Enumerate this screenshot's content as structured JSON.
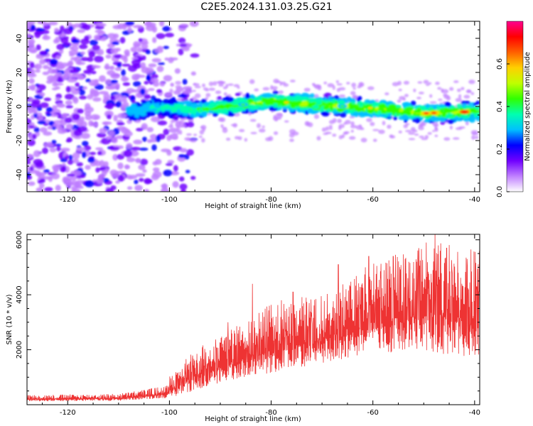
{
  "title": "C2E5.2024.131.03.25.G21",
  "charts": [
    {
      "type": "heatmap",
      "xlabel": "Height of straight line (km)",
      "ylabel": "Frequency (Hz)",
      "xlim": [
        -128,
        -39
      ],
      "ylim": [
        -50,
        50
      ],
      "xticks": [
        -120,
        -100,
        -80,
        -60,
        -40
      ],
      "yticks": [
        -40,
        -20,
        0,
        20,
        40
      ],
      "colorbar": {
        "label": "Normalized spectral amplitude",
        "range": [
          0,
          0.8
        ],
        "ticks": [
          "0.0",
          "0.2",
          "0.4",
          "0.6"
        ],
        "colors": [
          "#ffffff",
          "#c080ff",
          "#7000ff",
          "#0000ff",
          "#00c0ff",
          "#00ffb0",
          "#30ff00",
          "#c0ff00",
          "#ffd000",
          "#ff6000",
          "#ff0000",
          "#ff0090"
        ]
      },
      "signal_band": {
        "x_range": [
          -108,
          -39
        ],
        "center_hz": [
          {
            "x": -105,
            "y": 0
          },
          {
            "x": -95,
            "y": -2
          },
          {
            "x": -80,
            "y": 3
          },
          {
            "x": -70,
            "y": 1
          },
          {
            "x": -60,
            "y": -1
          },
          {
            "x": -50,
            "y": -4
          },
          {
            "x": -40,
            "y": -3
          }
        ],
        "halfwidth_hz": 7
      },
      "noise_region": {
        "x_range": [
          -128,
          -95
        ],
        "y_range": [
          -50,
          50
        ]
      }
    },
    {
      "type": "line",
      "xlabel": "Height of straight line (km)",
      "ylabel": "SNR (10 * v/v)",
      "xlim": [
        -128,
        -39
      ],
      "ylim": [
        0,
        6200
      ],
      "xticks": [
        -120,
        -100,
        -80,
        -60,
        -40
      ],
      "yticks": [
        2000,
        4000,
        6000
      ],
      "series": [
        {
          "color": "#ee3333",
          "envelope": [
            {
              "x": -128,
              "base": 120,
              "peak": 400
            },
            {
              "x": -110,
              "base": 140,
              "peak": 450
            },
            {
              "x": -100,
              "base": 250,
              "peak": 800
            },
            {
              "x": -95,
              "base": 500,
              "peak": 1600
            },
            {
              "x": -90,
              "base": 800,
              "peak": 2000
            },
            {
              "x": -85,
              "base": 1000,
              "peak": 2500
            },
            {
              "x": -80,
              "base": 1100,
              "peak": 3000
            },
            {
              "x": -75,
              "base": 1300,
              "peak": 3200
            },
            {
              "x": -70,
              "base": 1500,
              "peak": 3300
            },
            {
              "x": -65,
              "base": 1700,
              "peak": 3800
            },
            {
              "x": -60,
              "base": 1900,
              "peak": 4200
            },
            {
              "x": -55,
              "base": 1900,
              "peak": 4500
            },
            {
              "x": -50,
              "base": 2000,
              "peak": 4800
            },
            {
              "x": -45,
              "base": 1800,
              "peak": 4700
            },
            {
              "x": -40,
              "base": 1700,
              "peak": 4500
            }
          ],
          "spikes": [
            {
              "x": -97.5,
              "y": 1300
            },
            {
              "x": -93,
              "y": 1600
            },
            {
              "x": -88.5,
              "y": 3000
            },
            {
              "x": -83.7,
              "y": 4400
            },
            {
              "x": -78,
              "y": 3800
            },
            {
              "x": -75.7,
              "y": 4100
            },
            {
              "x": -72.5,
              "y": 3700
            },
            {
              "x": -66.8,
              "y": 5100
            },
            {
              "x": -61.5,
              "y": 5000
            },
            {
              "x": -60.8,
              "y": 5400
            },
            {
              "x": -56,
              "y": 5400
            },
            {
              "x": -51,
              "y": 5700
            },
            {
              "x": -49.5,
              "y": 5900
            },
            {
              "x": -47.8,
              "y": 6200
            },
            {
              "x": -45.5,
              "y": 5700
            },
            {
              "x": -43.2,
              "y": 4800
            },
            {
              "x": -41.5,
              "y": 5300
            },
            {
              "x": -39.6,
              "y": 4200
            }
          ]
        }
      ]
    }
  ]
}
